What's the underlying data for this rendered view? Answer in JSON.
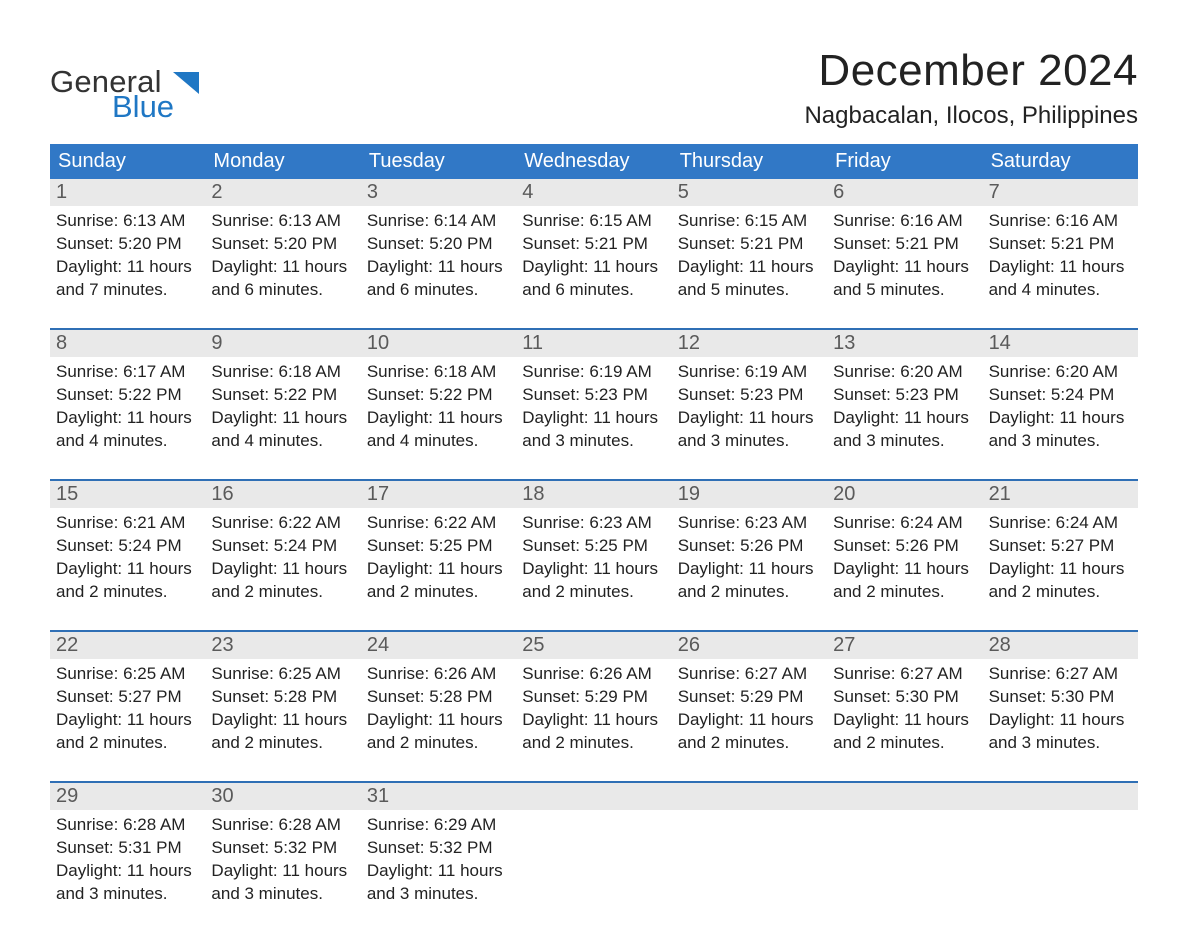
{
  "brand": {
    "line1": "General",
    "line2": "Blue",
    "logo_color": "#1f77c4",
    "text_color_line1": "#333333",
    "text_color_line2": "#1f77c4",
    "fontsize": 31
  },
  "heading": {
    "month": "December 2024",
    "location": "Nagbacalan, Ilocos, Philippines",
    "month_fontsize": 44,
    "location_fontsize": 24,
    "text_color": "#222222"
  },
  "calendar": {
    "type": "table",
    "columns": [
      "Sunday",
      "Monday",
      "Tuesday",
      "Wednesday",
      "Thursday",
      "Friday",
      "Saturday"
    ],
    "header_bg": "#3178c6",
    "header_text_color": "#ffffff",
    "header_fontsize": 20,
    "daynum_bg": "#e9e9e9",
    "daynum_color": "#5a5a5a",
    "daynum_fontsize": 20,
    "row_border_color": "#2f6fb5",
    "body_fontsize": 17,
    "body_text_color": "#222222",
    "weeks": [
      {
        "days": [
          {
            "num": "1",
            "sunrise": "Sunrise: 6:13 AM",
            "sunset": "Sunset: 5:20 PM",
            "daylight1": "Daylight: 11 hours",
            "daylight2": "and 7 minutes."
          },
          {
            "num": "2",
            "sunrise": "Sunrise: 6:13 AM",
            "sunset": "Sunset: 5:20 PM",
            "daylight1": "Daylight: 11 hours",
            "daylight2": "and 6 minutes."
          },
          {
            "num": "3",
            "sunrise": "Sunrise: 6:14 AM",
            "sunset": "Sunset: 5:20 PM",
            "daylight1": "Daylight: 11 hours",
            "daylight2": "and 6 minutes."
          },
          {
            "num": "4",
            "sunrise": "Sunrise: 6:15 AM",
            "sunset": "Sunset: 5:21 PM",
            "daylight1": "Daylight: 11 hours",
            "daylight2": "and 6 minutes."
          },
          {
            "num": "5",
            "sunrise": "Sunrise: 6:15 AM",
            "sunset": "Sunset: 5:21 PM",
            "daylight1": "Daylight: 11 hours",
            "daylight2": "and 5 minutes."
          },
          {
            "num": "6",
            "sunrise": "Sunrise: 6:16 AM",
            "sunset": "Sunset: 5:21 PM",
            "daylight1": "Daylight: 11 hours",
            "daylight2": "and 5 minutes."
          },
          {
            "num": "7",
            "sunrise": "Sunrise: 6:16 AM",
            "sunset": "Sunset: 5:21 PM",
            "daylight1": "Daylight: 11 hours",
            "daylight2": "and 4 minutes."
          }
        ]
      },
      {
        "days": [
          {
            "num": "8",
            "sunrise": "Sunrise: 6:17 AM",
            "sunset": "Sunset: 5:22 PM",
            "daylight1": "Daylight: 11 hours",
            "daylight2": "and 4 minutes."
          },
          {
            "num": "9",
            "sunrise": "Sunrise: 6:18 AM",
            "sunset": "Sunset: 5:22 PM",
            "daylight1": "Daylight: 11 hours",
            "daylight2": "and 4 minutes."
          },
          {
            "num": "10",
            "sunrise": "Sunrise: 6:18 AM",
            "sunset": "Sunset: 5:22 PM",
            "daylight1": "Daylight: 11 hours",
            "daylight2": "and 4 minutes."
          },
          {
            "num": "11",
            "sunrise": "Sunrise: 6:19 AM",
            "sunset": "Sunset: 5:23 PM",
            "daylight1": "Daylight: 11 hours",
            "daylight2": "and 3 minutes."
          },
          {
            "num": "12",
            "sunrise": "Sunrise: 6:19 AM",
            "sunset": "Sunset: 5:23 PM",
            "daylight1": "Daylight: 11 hours",
            "daylight2": "and 3 minutes."
          },
          {
            "num": "13",
            "sunrise": "Sunrise: 6:20 AM",
            "sunset": "Sunset: 5:23 PM",
            "daylight1": "Daylight: 11 hours",
            "daylight2": "and 3 minutes."
          },
          {
            "num": "14",
            "sunrise": "Sunrise: 6:20 AM",
            "sunset": "Sunset: 5:24 PM",
            "daylight1": "Daylight: 11 hours",
            "daylight2": "and 3 minutes."
          }
        ]
      },
      {
        "days": [
          {
            "num": "15",
            "sunrise": "Sunrise: 6:21 AM",
            "sunset": "Sunset: 5:24 PM",
            "daylight1": "Daylight: 11 hours",
            "daylight2": "and 2 minutes."
          },
          {
            "num": "16",
            "sunrise": "Sunrise: 6:22 AM",
            "sunset": "Sunset: 5:24 PM",
            "daylight1": "Daylight: 11 hours",
            "daylight2": "and 2 minutes."
          },
          {
            "num": "17",
            "sunrise": "Sunrise: 6:22 AM",
            "sunset": "Sunset: 5:25 PM",
            "daylight1": "Daylight: 11 hours",
            "daylight2": "and 2 minutes."
          },
          {
            "num": "18",
            "sunrise": "Sunrise: 6:23 AM",
            "sunset": "Sunset: 5:25 PM",
            "daylight1": "Daylight: 11 hours",
            "daylight2": "and 2 minutes."
          },
          {
            "num": "19",
            "sunrise": "Sunrise: 6:23 AM",
            "sunset": "Sunset: 5:26 PM",
            "daylight1": "Daylight: 11 hours",
            "daylight2": "and 2 minutes."
          },
          {
            "num": "20",
            "sunrise": "Sunrise: 6:24 AM",
            "sunset": "Sunset: 5:26 PM",
            "daylight1": "Daylight: 11 hours",
            "daylight2": "and 2 minutes."
          },
          {
            "num": "21",
            "sunrise": "Sunrise: 6:24 AM",
            "sunset": "Sunset: 5:27 PM",
            "daylight1": "Daylight: 11 hours",
            "daylight2": "and 2 minutes."
          }
        ]
      },
      {
        "days": [
          {
            "num": "22",
            "sunrise": "Sunrise: 6:25 AM",
            "sunset": "Sunset: 5:27 PM",
            "daylight1": "Daylight: 11 hours",
            "daylight2": "and 2 minutes."
          },
          {
            "num": "23",
            "sunrise": "Sunrise: 6:25 AM",
            "sunset": "Sunset: 5:28 PM",
            "daylight1": "Daylight: 11 hours",
            "daylight2": "and 2 minutes."
          },
          {
            "num": "24",
            "sunrise": "Sunrise: 6:26 AM",
            "sunset": "Sunset: 5:28 PM",
            "daylight1": "Daylight: 11 hours",
            "daylight2": "and 2 minutes."
          },
          {
            "num": "25",
            "sunrise": "Sunrise: 6:26 AM",
            "sunset": "Sunset: 5:29 PM",
            "daylight1": "Daylight: 11 hours",
            "daylight2": "and 2 minutes."
          },
          {
            "num": "26",
            "sunrise": "Sunrise: 6:27 AM",
            "sunset": "Sunset: 5:29 PM",
            "daylight1": "Daylight: 11 hours",
            "daylight2": "and 2 minutes."
          },
          {
            "num": "27",
            "sunrise": "Sunrise: 6:27 AM",
            "sunset": "Sunset: 5:30 PM",
            "daylight1": "Daylight: 11 hours",
            "daylight2": "and 2 minutes."
          },
          {
            "num": "28",
            "sunrise": "Sunrise: 6:27 AM",
            "sunset": "Sunset: 5:30 PM",
            "daylight1": "Daylight: 11 hours",
            "daylight2": "and 3 minutes."
          }
        ]
      },
      {
        "days": [
          {
            "num": "29",
            "sunrise": "Sunrise: 6:28 AM",
            "sunset": "Sunset: 5:31 PM",
            "daylight1": "Daylight: 11 hours",
            "daylight2": "and 3 minutes."
          },
          {
            "num": "30",
            "sunrise": "Sunrise: 6:28 AM",
            "sunset": "Sunset: 5:32 PM",
            "daylight1": "Daylight: 11 hours",
            "daylight2": "and 3 minutes."
          },
          {
            "num": "31",
            "sunrise": "Sunrise: 6:29 AM",
            "sunset": "Sunset: 5:32 PM",
            "daylight1": "Daylight: 11 hours",
            "daylight2": "and 3 minutes."
          },
          {
            "empty": true
          },
          {
            "empty": true
          },
          {
            "empty": true
          },
          {
            "empty": true
          }
        ]
      }
    ]
  }
}
